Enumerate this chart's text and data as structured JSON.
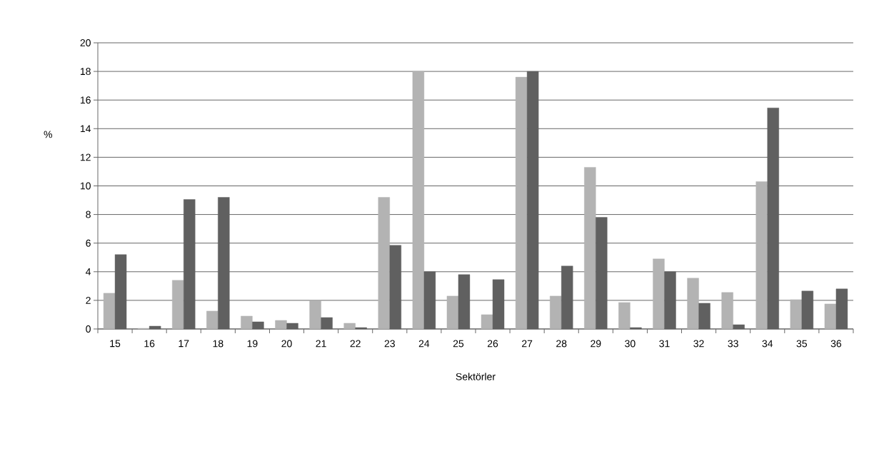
{
  "chart_data": {
    "type": "bar",
    "xlabel": "Sektörler",
    "ylabel": "%",
    "categories": [
      "15",
      "16",
      "17",
      "18",
      "19",
      "20",
      "21",
      "22",
      "23",
      "24",
      "25",
      "26",
      "27",
      "28",
      "29",
      "30",
      "31",
      "32",
      "33",
      "34",
      "35",
      "36"
    ],
    "series": [
      {
        "color": "#b3b3b3",
        "values": [
          2.5,
          0.05,
          3.4,
          1.25,
          0.9,
          0.6,
          2.0,
          0.4,
          9.2,
          18,
          2.3,
          1.0,
          17.6,
          2.3,
          11.3,
          1.85,
          4.9,
          3.55,
          2.55,
          10.3,
          2.05,
          1.75
        ]
      },
      {
        "color": "#606060",
        "values": [
          5.2,
          0.2,
          9.05,
          9.2,
          0.5,
          0.4,
          0.8,
          0.1,
          5.85,
          4.0,
          3.8,
          3.45,
          18,
          4.4,
          7.8,
          0.1,
          4.0,
          1.8,
          0.3,
          15.45,
          2.65,
          2.8
        ]
      }
    ],
    "ylim": [
      0,
      20
    ],
    "yticks": [
      0,
      2,
      4,
      6,
      8,
      10,
      12,
      14,
      16,
      18,
      20
    ],
    "grid": "y"
  }
}
